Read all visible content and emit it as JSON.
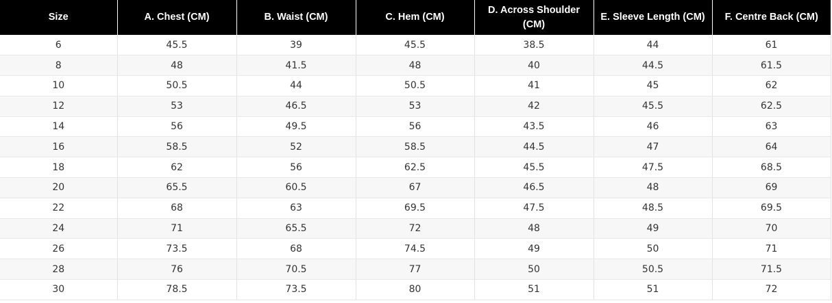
{
  "table": {
    "headers": [
      "Size",
      "A. Chest (CM)",
      "B. Waist (CM)",
      "C. Hem (CM)",
      "D. Across Shoulder (CM)",
      "E. Sleeve Length (CM)",
      "F. Centre Back (CM)"
    ],
    "rows": [
      [
        "6",
        "45.5",
        "39",
        "45.5",
        "38.5",
        "44",
        "61"
      ],
      [
        "8",
        "48",
        "41.5",
        "48",
        "40",
        "44.5",
        "61.5"
      ],
      [
        "10",
        "50.5",
        "44",
        "50.5",
        "41",
        "45",
        "62"
      ],
      [
        "12",
        "53",
        "46.5",
        "53",
        "42",
        "45.5",
        "62.5"
      ],
      [
        "14",
        "56",
        "49.5",
        "56",
        "43.5",
        "46",
        "63"
      ],
      [
        "16",
        "58.5",
        "52",
        "58.5",
        "44.5",
        "47",
        "64"
      ],
      [
        "18",
        "62",
        "56",
        "62.5",
        "45.5",
        "47.5",
        "68.5"
      ],
      [
        "20",
        "65.5",
        "60.5",
        "67",
        "46.5",
        "48",
        "69"
      ],
      [
        "22",
        "68",
        "63",
        "69.5",
        "47.5",
        "48.5",
        "69.5"
      ],
      [
        "24",
        "71",
        "65.5",
        "72",
        "48",
        "49",
        "70"
      ],
      [
        "26",
        "73.5",
        "68",
        "74.5",
        "49",
        "50",
        "71"
      ],
      [
        "28",
        "76",
        "70.5",
        "77",
        "50",
        "50.5",
        "71.5"
      ],
      [
        "30",
        "78.5",
        "73.5",
        "80",
        "51",
        "51",
        "72"
      ]
    ]
  }
}
